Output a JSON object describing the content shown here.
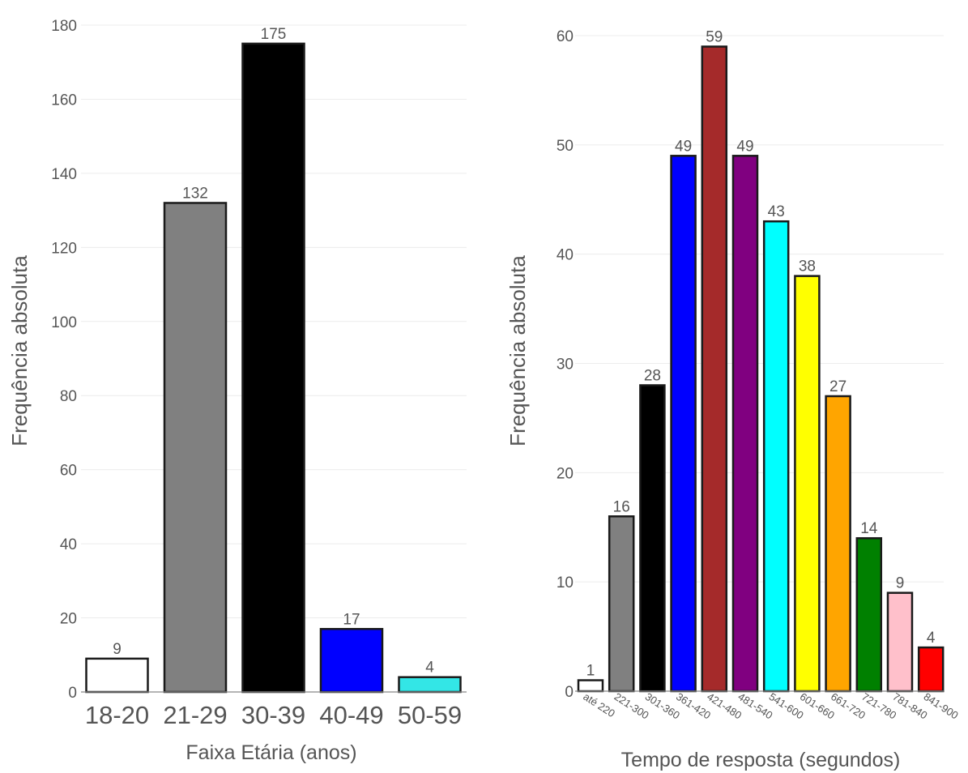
{
  "chart_data": [
    {
      "type": "bar",
      "xlabel": "Faixa Etária (anos)",
      "ylabel": "Frequência absoluta",
      "ylim": [
        0,
        180
      ],
      "yticks": [
        0,
        20,
        40,
        60,
        80,
        100,
        120,
        140,
        160,
        180
      ],
      "grid": true,
      "categories": [
        "18-20",
        "21-29",
        "30-39",
        "40-49",
        "50-59"
      ],
      "values": [
        9,
        132,
        175,
        17,
        4
      ],
      "colors": [
        "#ffffff",
        "#808080",
        "#000000",
        "#0000ff",
        "#33e6e6"
      ]
    },
    {
      "type": "bar",
      "xlabel": "Tempo de resposta (segundos)",
      "ylabel": "Frequência absoluta",
      "ylim": [
        0,
        60
      ],
      "yticks": [
        0,
        10,
        20,
        30,
        40,
        50,
        60
      ],
      "grid": true,
      "categories": [
        "até 220",
        "221-300",
        "301-360",
        "361-420",
        "421-480",
        "481-540",
        "541-600",
        "601-660",
        "661-720",
        "721-780",
        "781-840",
        "841-900"
      ],
      "values": [
        1,
        16,
        28,
        49,
        59,
        49,
        43,
        38,
        27,
        14,
        9,
        4
      ],
      "colors": [
        "#ffffff",
        "#808080",
        "#000000",
        "#0000ff",
        "#a52a2a",
        "#800080",
        "#00ffff",
        "#ffff00",
        "#ffa500",
        "#008000",
        "#ffc0cb",
        "#ff0000"
      ]
    }
  ]
}
